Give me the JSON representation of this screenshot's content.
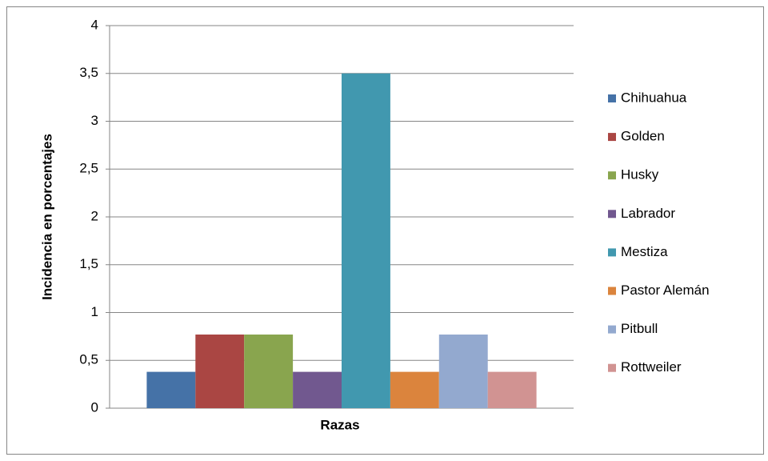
{
  "chart_data": {
    "type": "bar",
    "x_label": "Razas",
    "y_label": "Incidencia en porcentajes",
    "categories": [
      null
    ],
    "series": [
      {
        "name": "Chihuahua",
        "color": "#4572a7",
        "values": [
          0.38
        ]
      },
      {
        "name": "Golden",
        "color": "#aa4643",
        "values": [
          0.77
        ]
      },
      {
        "name": "Husky",
        "color": "#89a54e",
        "values": [
          0.77
        ]
      },
      {
        "name": "Labrador",
        "color": "#71588f",
        "values": [
          0.38
        ]
      },
      {
        "name": "Mestiza",
        "color": "#4198af",
        "values": [
          3.5
        ]
      },
      {
        "name": "Pastor Alemán",
        "color": "#db843d",
        "values": [
          0.38
        ]
      },
      {
        "name": "Pitbull",
        "color": "#93a9cf",
        "values": [
          0.77
        ]
      },
      {
        "name": "Rottweiler",
        "color": "#d19392",
        "values": [
          0.38
        ]
      }
    ],
    "ylim": [
      0,
      4
    ],
    "yticks": [
      0,
      {
        "value": 0.5,
        "label": "0,5"
      },
      1,
      {
        "value": 1.5,
        "label": "1,5"
      },
      2,
      {
        "value": 2.5,
        "label": "2,5"
      },
      3,
      {
        "value": 3.5,
        "label": "3,5"
      },
      4
    ],
    "grid": true,
    "legend": "right"
  }
}
